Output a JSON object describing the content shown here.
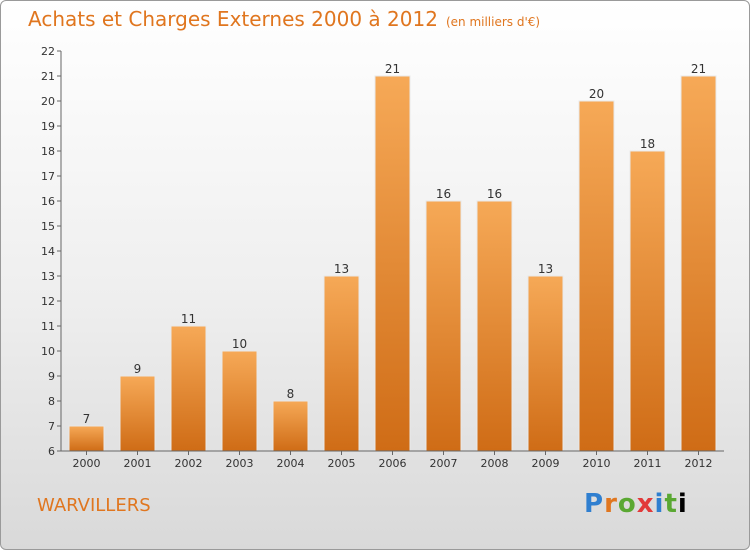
{
  "title": "Achats et Charges Externes 2000 à 2012",
  "subtitle": "(en milliers d'€)",
  "commune": "WARVILLERS",
  "logo": {
    "text": "Proxiti",
    "chars": [
      "P",
      "r",
      "o",
      "x",
      "i",
      "t",
      "i"
    ]
  },
  "colors": {
    "accent": "#e0761f",
    "bar_top": "#f6a957",
    "bar_bottom": "#cf6c16"
  },
  "chart_data": {
    "type": "bar",
    "categories": [
      "2000",
      "2001",
      "2002",
      "2003",
      "2004",
      "2005",
      "2006",
      "2007",
      "2008",
      "2009",
      "2010",
      "2011",
      "2012"
    ],
    "values": [
      7,
      9,
      11,
      10,
      8,
      13,
      21,
      16,
      16,
      13,
      20,
      18,
      21
    ],
    "title": "Achats et Charges Externes 2000 à 2012",
    "subtitle": "(en milliers d'€)",
    "xlabel": "",
    "ylabel": "",
    "ylim": [
      6,
      22
    ],
    "yticks": [
      6,
      7,
      8,
      9,
      10,
      11,
      12,
      13,
      14,
      15,
      16,
      17,
      18,
      19,
      20,
      21,
      22
    ],
    "grid": false,
    "data_labels": true
  }
}
